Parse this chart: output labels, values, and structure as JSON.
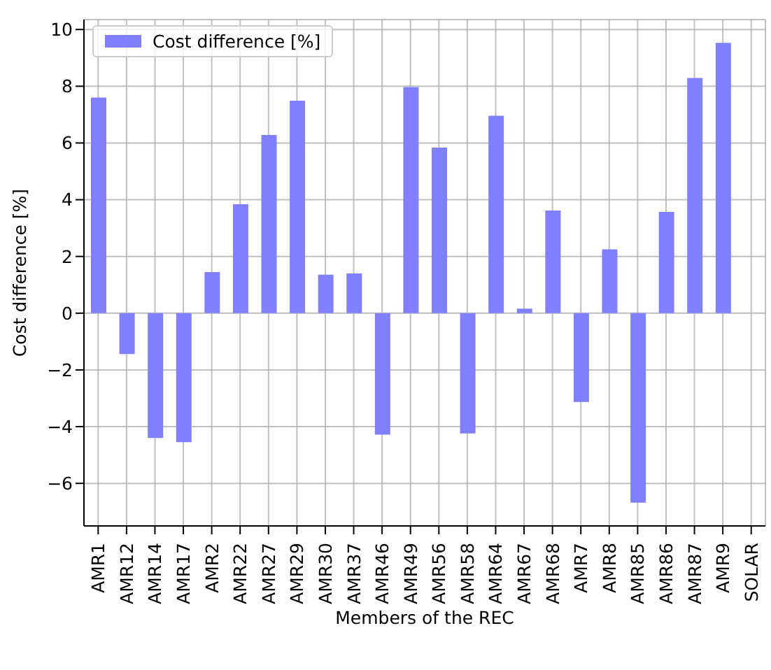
{
  "chart_data": {
    "type": "bar",
    "xlabel": "Members of the REC",
    "ylabel": "Cost difference [%]",
    "categories": [
      "AMR1",
      "AMR12",
      "AMR14",
      "AMR17",
      "AMR2",
      "AMR22",
      "AMR27",
      "AMR29",
      "AMR30",
      "AMR37",
      "AMR46",
      "AMR49",
      "AMR56",
      "AMR58",
      "AMR64",
      "AMR67",
      "AMR68",
      "AMR7",
      "AMR8",
      "AMR85",
      "AMR86",
      "AMR87",
      "AMR9",
      "SOLAR"
    ],
    "series": [
      {
        "name": "Cost difference [%]",
        "color": "#8080ff",
        "values": [
          7.6,
          -1.44,
          -4.4,
          -4.55,
          1.45,
          3.84,
          6.28,
          7.49,
          1.36,
          1.4,
          -4.28,
          7.97,
          5.84,
          -4.24,
          6.96,
          0.16,
          3.62,
          -3.13,
          2.25,
          -6.68,
          3.57,
          8.29,
          9.53,
          0
        ]
      }
    ],
    "ylim": [
      -7.5,
      10.35
    ],
    "yticks": [
      {
        "value": -6,
        "label": "−6"
      },
      {
        "value": -4,
        "label": "−4"
      },
      {
        "value": -2,
        "label": "−2"
      },
      0,
      2,
      4,
      6,
      8,
      10
    ],
    "grid": true,
    "legend": "top left"
  }
}
